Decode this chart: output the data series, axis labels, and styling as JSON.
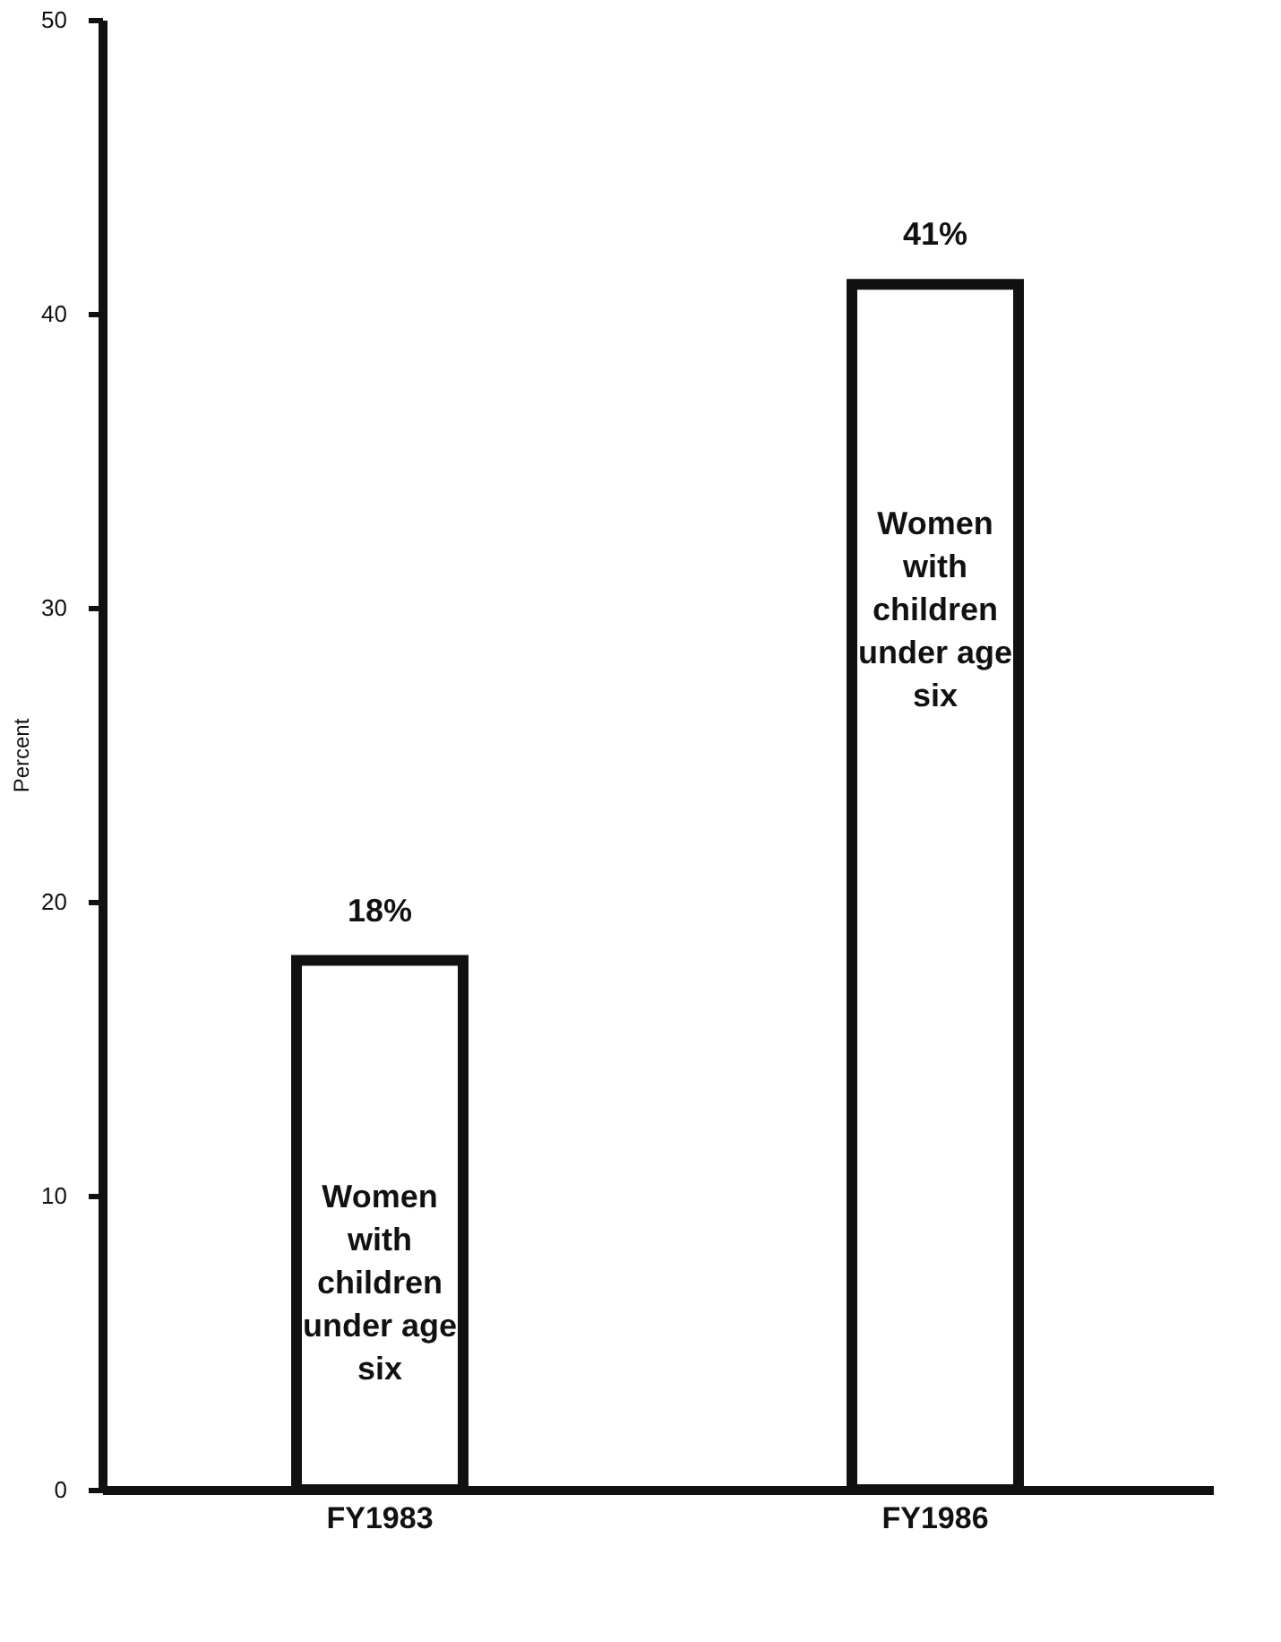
{
  "chart_data": {
    "type": "bar",
    "ylabel": "Percent",
    "categories": [
      "FY1983",
      "FY1986"
    ],
    "values": [
      18,
      41
    ],
    "color": "#ffffff",
    "value_labels": [
      "18%",
      "41%"
    ],
    "ylim": [
      0,
      50
    ],
    "yticks": [
      0,
      10,
      20,
      30,
      40,
      50
    ],
    "grid": false,
    "annotations": [
      "Women with children under age six",
      "Women with children under age six"
    ]
  }
}
